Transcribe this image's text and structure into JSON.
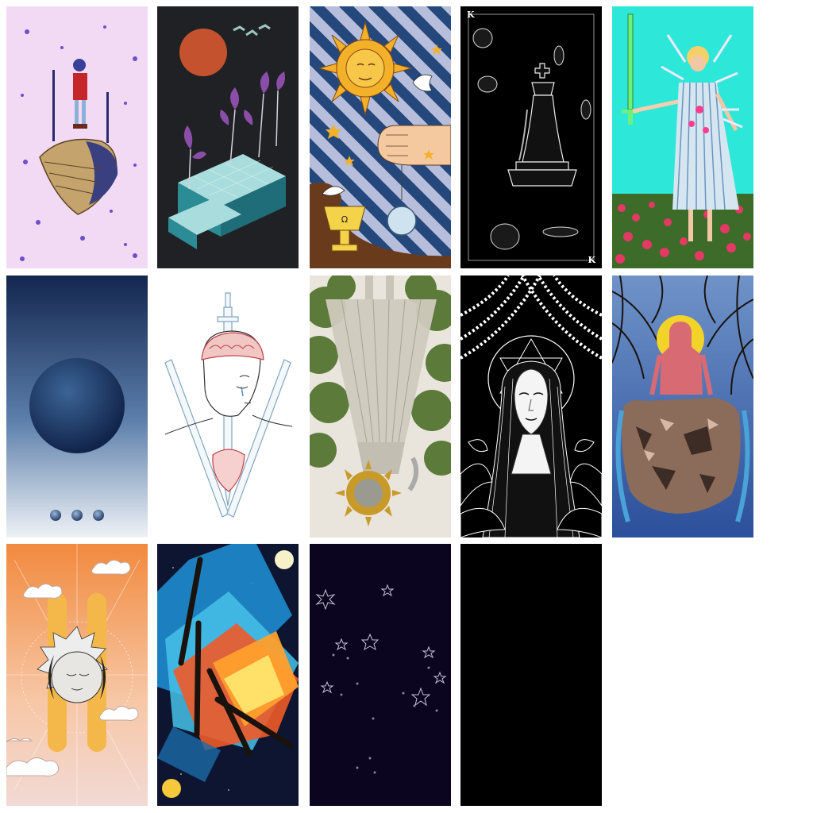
{
  "gallery": {
    "cards": [
      {
        "name": "floating-island-card",
        "icon": "floating-island-with-figure"
      },
      {
        "name": "isometric-plants-card",
        "icon": "orange-sun-and-purple-plants"
      },
      {
        "name": "sun-dove-chalice-card",
        "icon": "sun-face-dove-fist-chalice"
      },
      {
        "name": "chess-king-card",
        "icon": "chess-king-piece",
        "corner_label": "K"
      },
      {
        "name": "woman-with-swords-card",
        "icon": "woman-with-green-sword"
      },
      {
        "name": "dark-orb-card",
        "icon": "blue-orb-with-three-dots"
      },
      {
        "name": "head-with-swords-card",
        "icon": "head-brain-three-swords"
      },
      {
        "name": "upside-down-figure-card",
        "icon": "inverted-figure-with-sun"
      },
      {
        "name": "woman-hexagram-card",
        "icon": "woman-with-hexagram-halo"
      },
      {
        "name": "red-figure-rocks-card",
        "icon": "red-figure-on-rocks"
      },
      {
        "name": "sun-moon-clouds-card",
        "icon": "sun-moon-faces-and-clouds"
      },
      {
        "name": "wands-card",
        "icon": "colorful-wands"
      },
      {
        "name": "night-stars-card",
        "icon": "constellation-stars"
      },
      {
        "name": "black-card",
        "icon": "blank-black"
      }
    ]
  },
  "colors": {
    "page_background": "#ffffff",
    "lilac": "#f2d9f3",
    "charcoal": "#202124",
    "navy_stripe": "#24477c",
    "black": "#000000",
    "aqua": "#2de8d8"
  }
}
